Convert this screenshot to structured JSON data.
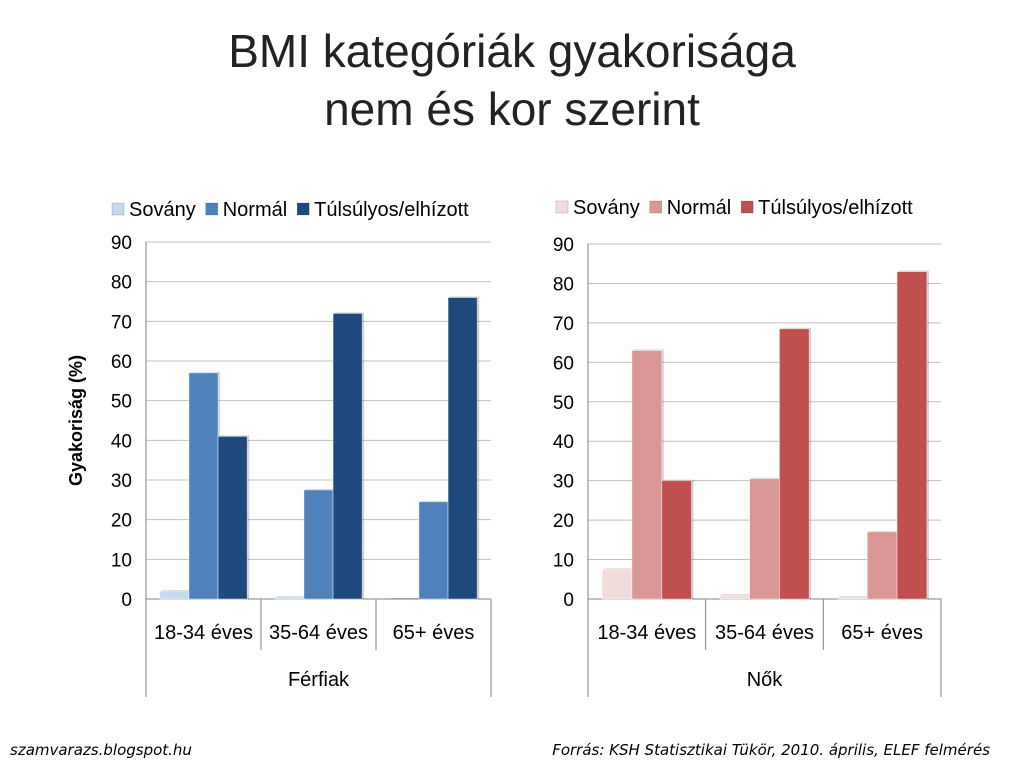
{
  "title": {
    "line1": "BMI kategóriák gyakorisága",
    "line2": "nem és kor szerint"
  },
  "footer": {
    "left": "szamvarazs.blogspot.hu",
    "right": "Forrás: KSH Statisztikai Tükör, 2010. április, ELEF felmérés"
  },
  "chart_data": [
    {
      "type": "bar",
      "group_label": "Férfiak",
      "ylabel": "Gyakoriság (%)",
      "ylim": [
        0,
        90
      ],
      "yticks": [
        0,
        10,
        20,
        30,
        40,
        50,
        60,
        70,
        80,
        90
      ],
      "grid": true,
      "legend": "top",
      "categories": [
        "18-34 éves",
        "35-64 éves",
        "65+ éves"
      ],
      "series": [
        {
          "name": "Sovány",
          "color": "#c6d9f0",
          "values": [
            2,
            0.5,
            0
          ]
        },
        {
          "name": "Normál",
          "color": "#4f81bd",
          "values": [
            57,
            27.5,
            24.5
          ]
        },
        {
          "name": "Túlsúlyos/elhízott",
          "color": "#1f497d",
          "values": [
            41,
            72,
            76
          ]
        }
      ]
    },
    {
      "type": "bar",
      "group_label": "Nők",
      "ylabel": "",
      "ylim": [
        0,
        90
      ],
      "yticks": [
        0,
        10,
        20,
        30,
        40,
        50,
        60,
        70,
        80,
        90
      ],
      "grid": true,
      "legend": "top",
      "categories": [
        "18-34 éves",
        "35-64 éves",
        "65+ éves"
      ],
      "series": [
        {
          "name": "Sovány",
          "color": "#f2dcdb",
          "values": [
            7.5,
            1,
            0.5
          ]
        },
        {
          "name": "Normál",
          "color": "#d99694",
          "values": [
            63,
            30.5,
            17
          ]
        },
        {
          "name": "Túlsúlyos/elhízott",
          "color": "#c0504d",
          "values": [
            30,
            68.5,
            83
          ]
        }
      ]
    }
  ]
}
